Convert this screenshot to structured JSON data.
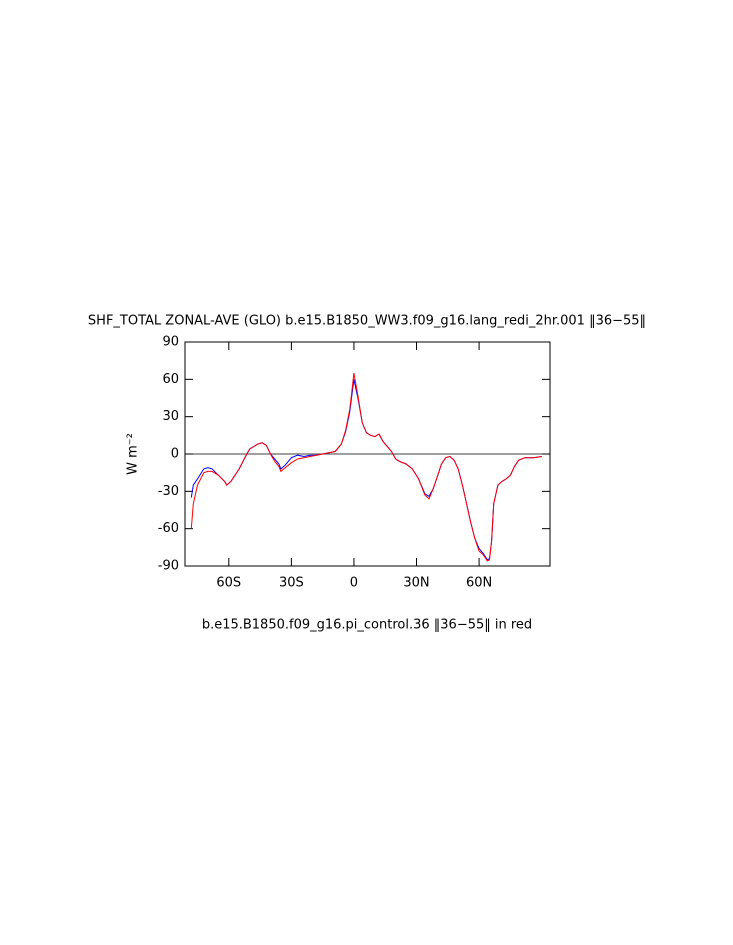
{
  "chart_data": {
    "type": "line",
    "title": "SHF_TOTAL ZONAL-AVE (GLO) b.e15.B1850_WW3.f09_g16.lang_redi_2hr.001 ‖36−55‖",
    "subtitle": "b.e15.B1850.f09_g16.pi_control.36 ‖36−55‖ in red",
    "y_label": "W m⁻²",
    "xlim": [
      -81,
      94
    ],
    "ylim": [
      -90,
      90
    ],
    "xticks": [
      {
        "value": -60,
        "label": "60S"
      },
      {
        "value": -30,
        "label": "30S"
      },
      0,
      {
        "value": 30,
        "label": "30N"
      },
      {
        "value": 60,
        "label": "60N"
      }
    ],
    "yticks": [
      -90,
      -60,
      -30,
      0,
      30,
      60,
      90
    ],
    "reference_line": 0,
    "x": [
      -78,
      -77,
      -75,
      -72,
      -70,
      -68,
      -65,
      -62,
      -61,
      -59,
      -55,
      -52,
      -50,
      -48,
      -46,
      -44,
      -42,
      -40,
      -38,
      -36,
      -35,
      -33,
      -30,
      -27,
      -24,
      -21,
      -18,
      -15,
      -12,
      -9,
      -6,
      -4,
      -2,
      0,
      2,
      4,
      6,
      8,
      10,
      12,
      14,
      16,
      18,
      20,
      22,
      25,
      28,
      31,
      34,
      36,
      38,
      40,
      42,
      44,
      46,
      48,
      50,
      52,
      54,
      56,
      58,
      60,
      62,
      64,
      65,
      66,
      67,
      69,
      71,
      73,
      75,
      77,
      79,
      82,
      86,
      90
    ],
    "series": [
      {
        "name": "b.e15.B1850_WW3.f09_g16.lang_redi_2hr.001",
        "color": "#0000ff",
        "values": [
          -35,
          -25,
          -20,
          -12,
          -11,
          -12,
          -17,
          -22,
          -25,
          -22,
          -12,
          -2,
          4,
          6,
          8,
          9,
          7,
          0,
          -4,
          -8,
          -12,
          -9,
          -3,
          -1,
          -2,
          -1,
          -1,
          0,
          1,
          2,
          8,
          18,
          34,
          60,
          44,
          25,
          17,
          15,
          14,
          16,
          10,
          6,
          2,
          -4,
          -6,
          -8,
          -12,
          -20,
          -32,
          -34,
          -28,
          -18,
          -8,
          -3,
          -2,
          -5,
          -12,
          -25,
          -40,
          -55,
          -68,
          -76,
          -80,
          -85,
          -84,
          -70,
          -40,
          -25,
          -22,
          -20,
          -17,
          -10,
          -5,
          -3,
          -3,
          -2
        ]
      },
      {
        "name": "b.e15.B1850.f09_g16.pi_control.36",
        "color": "#ff0000",
        "values": [
          -60,
          -40,
          -25,
          -15,
          -14,
          -14,
          -17,
          -22,
          -25,
          -22,
          -12,
          -2,
          4,
          6,
          8,
          9,
          7,
          0,
          -6,
          -10,
          -14,
          -11,
          -7,
          -4,
          -3,
          -2,
          -1,
          0,
          1,
          2,
          8,
          19,
          36,
          65,
          46,
          25,
          17,
          15,
          14,
          16,
          10,
          6,
          2,
          -4,
          -6,
          -8,
          -12,
          -20,
          -33,
          -36,
          -28,
          -18,
          -8,
          -3,
          -2,
          -5,
          -12,
          -25,
          -40,
          -55,
          -68,
          -78,
          -81,
          -86,
          -85,
          -70,
          -40,
          -25,
          -22,
          -20,
          -17,
          -10,
          -5,
          -3,
          -3,
          -2
        ]
      }
    ]
  }
}
